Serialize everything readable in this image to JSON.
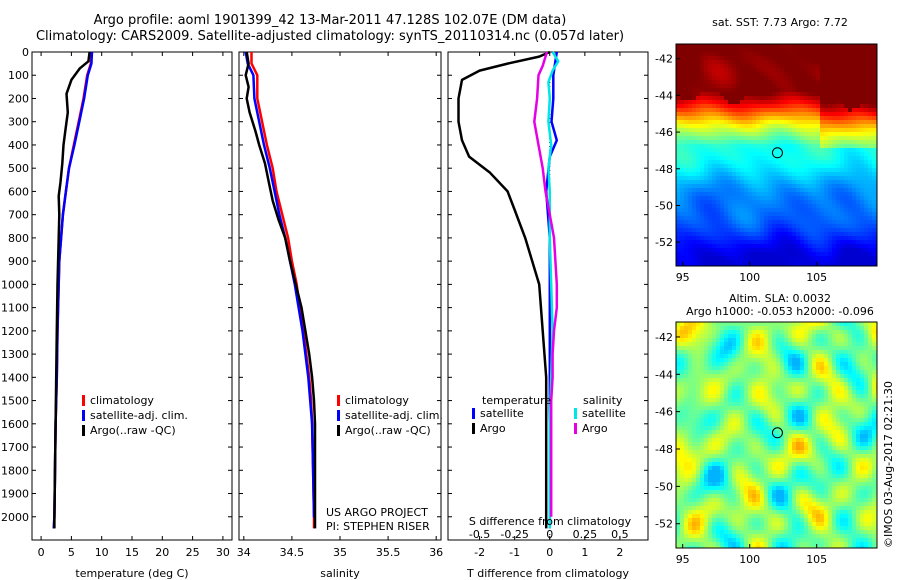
{
  "header": {
    "title_line1": "Argo profile: aoml 1901399_42 13-Mar-2011 47.128S 102.07E (DM data)",
    "title_line2": "Climatology: CARS2009. Satellite-adjusted climatology: synTS_20110314.nc (0.057d later)"
  },
  "stamp": "©IMOS 03-Aug-2017 02:21:30",
  "colors": {
    "climatology": "#ff0000",
    "satellite": "#0000ff",
    "argo": "#000000",
    "sat_salinity": "#00e5e5",
    "argo_salinity": "#e600e6"
  },
  "chart_data": [
    {
      "type": "line",
      "xlabel": "temperature (deg C)",
      "ylim": [
        2100,
        0
      ],
      "xlim": [
        -1.5,
        31.5
      ],
      "yticks": [
        "0",
        "100",
        "200",
        "300",
        "400",
        "500",
        "600",
        "700",
        "800",
        "900",
        "1000",
        "1100",
        "1200",
        "1300",
        "1400",
        "1500",
        "1600",
        "1700",
        "1800",
        "1900",
        "2000"
      ],
      "xticks": [
        "0",
        "5",
        "10",
        "15",
        "20",
        "25",
        "30"
      ],
      "legend": [
        "climatology",
        "satellite-adj. clim.",
        "Argo(..raw -QC)"
      ],
      "series": [
        {
          "name": "climatology",
          "color": "#ff0000",
          "points": [
            [
              8.3,
              0
            ],
            [
              8.2,
              50
            ],
            [
              7.6,
              100
            ],
            [
              7.0,
              200
            ],
            [
              6.2,
              300
            ],
            [
              5.4,
              400
            ],
            [
              4.6,
              500
            ],
            [
              4.1,
              600
            ],
            [
              3.6,
              700
            ],
            [
              3.3,
              800
            ],
            [
              3.0,
              900
            ],
            [
              2.9,
              1000
            ],
            [
              2.7,
              1200
            ],
            [
              2.6,
              1400
            ],
            [
              2.4,
              1600
            ],
            [
              2.3,
              1800
            ],
            [
              2.2,
              2000
            ],
            [
              2.1,
              2050
            ]
          ]
        },
        {
          "name": "satellite-adj. clim.",
          "color": "#0000ff",
          "points": [
            [
              8.4,
              0
            ],
            [
              8.3,
              50
            ],
            [
              7.7,
              100
            ],
            [
              7.1,
              200
            ],
            [
              6.3,
              300
            ],
            [
              5.5,
              400
            ],
            [
              4.6,
              500
            ],
            [
              4.1,
              600
            ],
            [
              3.6,
              700
            ],
            [
              3.3,
              800
            ],
            [
              3.0,
              900
            ],
            [
              2.9,
              1000
            ],
            [
              2.7,
              1200
            ],
            [
              2.6,
              1400
            ],
            [
              2.4,
              1600
            ],
            [
              2.3,
              1800
            ],
            [
              2.2,
              2000
            ],
            [
              2.1,
              2050
            ]
          ]
        },
        {
          "name": "Argo(..raw -QC)",
          "color": "#000000",
          "points": [
            [
              8.0,
              0
            ],
            [
              7.8,
              40
            ],
            [
              6.4,
              70
            ],
            [
              5.0,
              120
            ],
            [
              4.2,
              180
            ],
            [
              4.4,
              260
            ],
            [
              4.0,
              340
            ],
            [
              3.7,
              400
            ],
            [
              3.5,
              480
            ],
            [
              3.2,
              560
            ],
            [
              2.9,
              620
            ],
            [
              3.0,
              700
            ],
            [
              2.9,
              800
            ],
            [
              2.8,
              900
            ],
            [
              2.7,
              1000
            ],
            [
              2.6,
              1200
            ],
            [
              2.5,
              1400
            ],
            [
              2.4,
              1600
            ],
            [
              2.3,
              1800
            ],
            [
              2.2,
              2000
            ],
            [
              2.2,
              2050
            ]
          ]
        }
      ]
    },
    {
      "type": "line",
      "xlabel": "salinity",
      "ylim": [
        2100,
        0
      ],
      "xlim": [
        33.95,
        36.05
      ],
      "xticks": [
        "34",
        "34.5",
        "35",
        "35.5",
        "36"
      ],
      "legend": [
        "climatology",
        "satellite-adj. clim.",
        "Argo(..raw -QC)"
      ],
      "annotation": [
        "US ARGO PROJECT",
        "PI: STEPHEN RISER"
      ],
      "series": [
        {
          "name": "climatology",
          "color": "#ff0000",
          "points": [
            [
              34.08,
              0
            ],
            [
              34.08,
              50
            ],
            [
              34.14,
              100
            ],
            [
              34.14,
              200
            ],
            [
              34.19,
              300
            ],
            [
              34.24,
              400
            ],
            [
              34.3,
              500
            ],
            [
              34.34,
              600
            ],
            [
              34.4,
              700
            ],
            [
              34.46,
              800
            ],
            [
              34.5,
              900
            ],
            [
              34.55,
              1000
            ],
            [
              34.58,
              1100
            ],
            [
              34.62,
              1200
            ],
            [
              34.65,
              1300
            ],
            [
              34.68,
              1400
            ],
            [
              34.7,
              1500
            ],
            [
              34.71,
              1600
            ],
            [
              34.72,
              1800
            ],
            [
              34.73,
              2000
            ],
            [
              34.73,
              2050
            ]
          ]
        },
        {
          "name": "satellite-adj. clim.",
          "color": "#0000ff",
          "points": [
            [
              34.02,
              0
            ],
            [
              34.04,
              50
            ],
            [
              34.1,
              100
            ],
            [
              34.11,
              200
            ],
            [
              34.16,
              300
            ],
            [
              34.21,
              400
            ],
            [
              34.27,
              500
            ],
            [
              34.32,
              600
            ],
            [
              34.37,
              700
            ],
            [
              34.43,
              800
            ],
            [
              34.48,
              900
            ],
            [
              34.53,
              1000
            ],
            [
              34.57,
              1100
            ],
            [
              34.61,
              1200
            ],
            [
              34.64,
              1300
            ],
            [
              34.67,
              1400
            ],
            [
              34.69,
              1500
            ],
            [
              34.71,
              1600
            ],
            [
              34.72,
              1800
            ],
            [
              34.73,
              2000
            ],
            [
              34.73,
              1950
            ]
          ]
        },
        {
          "name": "Argo(..raw -QC)",
          "color": "#000000",
          "points": [
            [
              34.03,
              0
            ],
            [
              34.05,
              50
            ],
            [
              34.02,
              100
            ],
            [
              34.05,
              150
            ],
            [
              34.03,
              200
            ],
            [
              34.06,
              260
            ],
            [
              34.12,
              340
            ],
            [
              34.16,
              400
            ],
            [
              34.22,
              480
            ],
            [
              34.26,
              560
            ],
            [
              34.3,
              640
            ],
            [
              34.36,
              720
            ],
            [
              34.43,
              800
            ],
            [
              34.48,
              900
            ],
            [
              34.54,
              1000
            ],
            [
              34.6,
              1100
            ],
            [
              34.64,
              1200
            ],
            [
              34.68,
              1300
            ],
            [
              34.71,
              1400
            ],
            [
              34.73,
              1500
            ],
            [
              34.74,
              1600
            ],
            [
              34.74,
              1800
            ],
            [
              34.74,
              2000
            ],
            [
              34.74,
              2050
            ]
          ]
        }
      ]
    },
    {
      "type": "line",
      "xlabel": "T difference from climatology",
      "xlabel_top": "S difference from climatology",
      "ylim": [
        2100,
        0
      ],
      "xlim": [
        -2.9,
        2.8
      ],
      "xticks": [
        "-2",
        "-1",
        "0",
        "1",
        "2"
      ],
      "xticks_top": [
        "-0.5",
        "-0.25",
        "0",
        "0.25",
        "0.5"
      ],
      "legend_left_title": "temperature",
      "legend_right_title": "salinity",
      "legend_left": [
        "satellite",
        "Argo"
      ],
      "legend_right": [
        "satellite",
        "Argo"
      ],
      "series": [
        {
          "name": "satellite",
          "group": "temperature",
          "color": "#0000ff",
          "points": [
            [
              0.2,
              0
            ],
            [
              0.1,
              100
            ],
            [
              0.1,
              200
            ],
            [
              0.05,
              300
            ],
            [
              0.2,
              380
            ],
            [
              0.0,
              450
            ],
            [
              -0.1,
              600
            ],
            [
              0.0,
              800
            ],
            [
              0.0,
              1000
            ],
            [
              0.0,
              1500
            ],
            [
              0.0,
              2000
            ],
            [
              0.0,
              2050
            ]
          ]
        },
        {
          "name": "Argo",
          "group": "temperature",
          "color": "#000000",
          "points": [
            [
              0.0,
              0
            ],
            [
              -0.3,
              20
            ],
            [
              -1.2,
              50
            ],
            [
              -2.0,
              80
            ],
            [
              -2.5,
              120
            ],
            [
              -2.6,
              200
            ],
            [
              -2.6,
              300
            ],
            [
              -2.5,
              380
            ],
            [
              -2.3,
              450
            ],
            [
              -1.7,
              520
            ],
            [
              -1.2,
              600
            ],
            [
              -1.0,
              680
            ],
            [
              -0.7,
              800
            ],
            [
              -0.5,
              900
            ],
            [
              -0.3,
              1000
            ],
            [
              -0.2,
              1200
            ],
            [
              -0.1,
              1400
            ],
            [
              -0.1,
              1600
            ],
            [
              -0.1,
              2000
            ],
            [
              -0.1,
              2050
            ]
          ]
        },
        {
          "name": "satellite",
          "group": "salinity",
          "color": "#00e5e5",
          "points": [
            [
              0.02,
              0
            ],
            [
              0.06,
              40
            ],
            [
              0.02,
              80
            ],
            [
              -0.01,
              130
            ],
            [
              0.0,
              200
            ],
            [
              -0.01,
              300
            ],
            [
              0.01,
              400
            ],
            [
              -0.01,
              500
            ],
            [
              0.0,
              600
            ],
            [
              0.0,
              800
            ],
            [
              0.01,
              1000
            ],
            [
              0.02,
              1200
            ],
            [
              0.01,
              1400
            ],
            [
              0.0,
              1600
            ],
            [
              0.0,
              1800
            ],
            [
              0.0,
              2000
            ],
            [
              0.0,
              2050
            ]
          ]
        },
        {
          "name": "Argo",
          "group": "salinity",
          "color": "#e600e6",
          "points": [
            [
              -0.02,
              0
            ],
            [
              -0.05,
              60
            ],
            [
              -0.08,
              100
            ],
            [
              -0.09,
              200
            ],
            [
              -0.11,
              300
            ],
            [
              -0.08,
              400
            ],
            [
              -0.05,
              500
            ],
            [
              -0.03,
              600
            ],
            [
              0.0,
              700
            ],
            [
              0.03,
              800
            ],
            [
              0.04,
              900
            ],
            [
              0.05,
              1000
            ],
            [
              0.05,
              1100
            ],
            [
              0.03,
              1200
            ],
            [
              0.02,
              1300
            ],
            [
              0.02,
              1400
            ],
            [
              0.01,
              1500
            ],
            [
              0.01,
              1600
            ],
            [
              0.01,
              1800
            ],
            [
              0.01,
              2000
            ]
          ]
        }
      ]
    },
    {
      "type": "heatmap",
      "title": "sat. SST: 7.73 Argo: 7.72",
      "xlim": [
        94.5,
        109.5
      ],
      "ylim": [
        -53.3,
        -41.2
      ],
      "xticks": [
        "95",
        "100",
        "105"
      ],
      "yticks": [
        "-42",
        "-44",
        "-46",
        "-48",
        "-50",
        "-52"
      ],
      "marker": {
        "lon": 102.07,
        "lat": -47.13
      }
    },
    {
      "type": "heatmap",
      "title": "Altim. SLA: 0.0032",
      "subtitle": "Argo h1000: -0.053 h2000: -0.096",
      "xlim": [
        94.5,
        109.5
      ],
      "ylim": [
        -53.3,
        -41.2
      ],
      "xticks": [
        "95",
        "100",
        "105"
      ],
      "yticks": [
        "-42",
        "-44",
        "-46",
        "-48",
        "-50",
        "-52"
      ],
      "marker": {
        "lon": 102.07,
        "lat": -47.13
      }
    }
  ]
}
